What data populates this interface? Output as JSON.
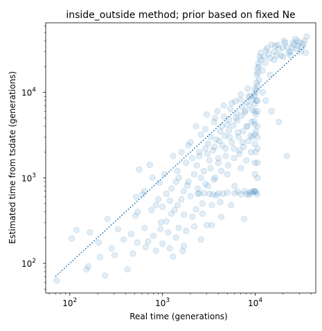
{
  "chart_data": {
    "type": "scatter",
    "title": "inside_outside method; prior based on fixed Ne",
    "xlabel": "Real time (generations)",
    "ylabel": "Estimated time from tsdate (generations)",
    "xscale": "log",
    "yscale": "log",
    "xlim": [
      55,
      45000
    ],
    "ylim": [
      45,
      65000
    ],
    "x_ticks": [
      {
        "value": 100,
        "base": "10",
        "exp": "2"
      },
      {
        "value": 1000,
        "base": "10",
        "exp": "3"
      },
      {
        "value": 10000,
        "base": "10",
        "exp": "4"
      }
    ],
    "y_ticks": [
      {
        "value": 100,
        "base": "10",
        "exp": "2"
      },
      {
        "value": 1000,
        "base": "10",
        "exp": "3"
      },
      {
        "value": 10000,
        "base": "10",
        "exp": "4"
      }
    ],
    "point_color": "#1f77b4",
    "point_alpha": 0.13,
    "reference_line": {
      "style": "dotted",
      "color": "#1f77b4",
      "from": 70,
      "to": 35000
    },
    "points": [
      [
        72,
        63
      ],
      [
        105,
        195
      ],
      [
        118,
        245
      ],
      [
        152,
        85
      ],
      [
        158,
        92
      ],
      [
        165,
        230
      ],
      [
        205,
        175
      ],
      [
        212,
        118
      ],
      [
        240,
        72
      ],
      [
        255,
        330
      ],
      [
        282,
        150
      ],
      [
        305,
        125
      ],
      [
        330,
        250
      ],
      [
        380,
        190
      ],
      [
        420,
        85
      ],
      [
        480,
        130
      ],
      [
        510,
        360
      ],
      [
        535,
        175
      ],
      [
        540,
        400
      ],
      [
        560,
        1250
      ],
      [
        610,
        640
      ],
      [
        640,
        260
      ],
      [
        660,
        155
      ],
      [
        700,
        180
      ],
      [
        730,
        1420
      ],
      [
        760,
        420
      ],
      [
        800,
        210
      ],
      [
        850,
        140
      ],
      [
        900,
        560
      ],
      [
        930,
        880
      ],
      [
        960,
        300
      ],
      [
        1000,
        170
      ],
      [
        1050,
        1100
      ],
      [
        1100,
        650
      ],
      [
        1150,
        230
      ],
      [
        1200,
        150
      ],
      [
        1250,
        380
      ],
      [
        1300,
        1800
      ],
      [
        1350,
        420
      ],
      [
        1400,
        900
      ],
      [
        1450,
        1200
      ],
      [
        1500,
        260
      ],
      [
        1600,
        2000
      ],
      [
        1650,
        140
      ],
      [
        1700,
        700
      ],
      [
        1800,
        1500
      ],
      [
        1900,
        900
      ],
      [
        2000,
        2600
      ],
      [
        2100,
        350
      ],
      [
        2200,
        1100
      ],
      [
        2300,
        4000
      ],
      [
        2400,
        650
      ],
      [
        2500,
        1800
      ],
      [
        2600,
        3200
      ],
      [
        2700,
        500
      ],
      [
        2800,
        1200
      ],
      [
        2900,
        2200
      ],
      [
        3000,
        5500
      ],
      [
        3100,
        800
      ],
      [
        3200,
        1600
      ],
      [
        3300,
        3000
      ],
      [
        3400,
        280
      ],
      [
        3500,
        2100
      ],
      [
        3600,
        4500
      ],
      [
        3700,
        1000
      ],
      [
        3800,
        2800
      ],
      [
        3900,
        6000
      ],
      [
        4000,
        1500
      ],
      [
        4200,
        3500
      ],
      [
        4400,
        2400
      ],
      [
        4600,
        7000
      ],
      [
        4800,
        1800
      ],
      [
        5000,
        4200
      ],
      [
        5300,
        3000
      ],
      [
        5600,
        7500
      ],
      [
        5900,
        2200
      ],
      [
        6200,
        5000
      ],
      [
        6500,
        3400
      ],
      [
        6900,
        8200
      ],
      [
        7300,
        2600
      ],
      [
        7700,
        5800
      ],
      [
        8100,
        4000
      ],
      [
        8500,
        9000
      ],
      [
        8900,
        3100
      ],
      [
        9300,
        6200
      ],
      [
        9700,
        4600
      ],
      [
        10000,
        700
      ],
      [
        10100,
        2000
      ],
      [
        10150,
        3500
      ],
      [
        10200,
        5500
      ],
      [
        10250,
        8000
      ],
      [
        10300,
        10500
      ],
      [
        10350,
        13000
      ],
      [
        10400,
        16000
      ],
      [
        10500,
        19000
      ],
      [
        10800,
        22000
      ],
      [
        11500,
        24000
      ],
      [
        12500,
        26000
      ],
      [
        14000,
        28000
      ],
      [
        16000,
        30000
      ],
      [
        18000,
        32000
      ],
      [
        20000,
        33000
      ],
      [
        22000,
        34000
      ],
      [
        24000,
        30000
      ],
      [
        26000,
        36000
      ],
      [
        28000,
        32000
      ],
      [
        30000,
        38000
      ],
      [
        32000,
        34000
      ],
      [
        34000,
        40000
      ],
      [
        35000,
        29000
      ],
      [
        27000,
        42000
      ],
      [
        21000,
        38000
      ],
      [
        17000,
        27000
      ],
      [
        15000,
        36000
      ],
      [
        13000,
        31000
      ],
      [
        12000,
        18000
      ],
      [
        11000,
        14000
      ],
      [
        15000,
        6000
      ],
      [
        18000,
        4500
      ],
      [
        22000,
        1800
      ],
      [
        3000,
        280
      ],
      [
        1700,
        160
      ],
      [
        1300,
        120
      ],
      [
        2600,
        190
      ],
      [
        5000,
        1100
      ],
      [
        6000,
        800
      ],
      [
        7000,
        1300
      ],
      [
        8000,
        1600
      ],
      [
        9000,
        2000
      ],
      [
        4500,
        650
      ],
      [
        3500,
        640
      ],
      [
        2800,
        660
      ],
      [
        6000,
        660
      ],
      [
        8000,
        650
      ],
      [
        9500,
        680
      ],
      [
        5500,
        480
      ],
      [
        7600,
        330
      ],
      [
        4300,
        350
      ],
      [
        6800,
        2100
      ],
      [
        2200,
        270
      ],
      [
        1600,
        560
      ],
      [
        1100,
        310
      ],
      [
        850,
        480
      ],
      [
        950,
        250
      ],
      [
        1250,
        750
      ],
      [
        1450,
        480
      ],
      [
        1850,
        820
      ],
      [
        2350,
        1400
      ],
      [
        3050,
        1900
      ],
      [
        3650,
        2300
      ],
      [
        4100,
        2700
      ],
      [
        4700,
        3100
      ],
      [
        5200,
        3600
      ],
      [
        5800,
        4100
      ],
      [
        6400,
        4700
      ],
      [
        7100,
        5300
      ],
      [
        7800,
        6100
      ],
      [
        8600,
        7000
      ],
      [
        9400,
        8200
      ],
      [
        9800,
        9600
      ],
      [
        2600,
        1000
      ],
      [
        3300,
        1300
      ],
      [
        4000,
        1700
      ],
      [
        4800,
        2200
      ],
      [
        5600,
        2600
      ],
      [
        6600,
        3000
      ],
      [
        7400,
        3500
      ],
      [
        8200,
        4000
      ],
      [
        9100,
        4500
      ],
      [
        9900,
        1100
      ],
      [
        9900,
        1500
      ],
      [
        9900,
        2500
      ],
      [
        9900,
        3200
      ],
      [
        9900,
        4200
      ],
      [
        9900,
        6000
      ],
      [
        9900,
        7300
      ],
      [
        9900,
        9000
      ],
      [
        9900,
        11000
      ],
      [
        10600,
        12000
      ],
      [
        10600,
        8000
      ],
      [
        10600,
        6000
      ],
      [
        10600,
        4000
      ],
      [
        10600,
        3000
      ],
      [
        10600,
        2200
      ],
      [
        10600,
        1500
      ],
      [
        10600,
        1000
      ],
      [
        10200,
        680
      ],
      [
        10500,
        640
      ],
      [
        9700,
        700
      ],
      [
        9000,
        690
      ],
      [
        8500,
        630
      ],
      [
        7000,
        640
      ],
      [
        5000,
        670
      ],
      [
        4000,
        660
      ],
      [
        3200,
        650
      ],
      [
        2500,
        660
      ],
      [
        3800,
        620
      ],
      [
        6500,
        690
      ],
      [
        7700,
        700
      ],
      [
        8800,
        660
      ],
      [
        1500,
        1000
      ],
      [
        1900,
        2400
      ],
      [
        2900,
        3700
      ],
      [
        3700,
        5000
      ],
      [
        4600,
        5200
      ],
      [
        5400,
        6400
      ],
      [
        6100,
        7800
      ],
      [
        7000,
        9500
      ],
      [
        8300,
        11000
      ],
      [
        1400,
        200
      ],
      [
        1800,
        240
      ],
      [
        2300,
        430
      ],
      [
        2700,
        380
      ],
      [
        3400,
        480
      ],
      [
        4200,
        520
      ],
      [
        780,
        1000
      ],
      [
        640,
        700
      ],
      [
        520,
        600
      ],
      [
        460,
        220
      ],
      [
        1000,
        460
      ],
      [
        1200,
        540
      ],
      [
        1700,
        370
      ],
      [
        2000,
        610
      ],
      [
        2400,
        750
      ],
      [
        2900,
        850
      ],
      [
        3600,
        950
      ],
      [
        4300,
        1200
      ],
      [
        5100,
        1400
      ],
      [
        5900,
        1700
      ],
      [
        6700,
        1900
      ],
      [
        7500,
        2300
      ],
      [
        8400,
        2700
      ],
      [
        9300,
        3000
      ],
      [
        2100,
        1700
      ],
      [
        2500,
        2000
      ],
      [
        3100,
        2500
      ],
      [
        4400,
        4000
      ],
      [
        5200,
        4800
      ],
      [
        6300,
        5700
      ],
      [
        7200,
        6800
      ],
      [
        8100,
        7700
      ],
      [
        8900,
        9000
      ],
      [
        19000,
        27000
      ],
      [
        23000,
        29000
      ],
      [
        25000,
        33000
      ],
      [
        29000,
        35000
      ],
      [
        31000,
        30000
      ],
      [
        33000,
        37000
      ],
      [
        36000,
        45000
      ],
      [
        13500,
        33000
      ],
      [
        16500,
        35000
      ],
      [
        11200,
        26000
      ],
      [
        12800,
        22000
      ],
      [
        14500,
        25000
      ],
      [
        16000,
        24000
      ],
      [
        20000,
        26000
      ],
      [
        24000,
        27000
      ],
      [
        10700,
        17000
      ],
      [
        10900,
        20000
      ],
      [
        11400,
        29000
      ],
      [
        17500,
        36000
      ],
      [
        20500,
        40000
      ],
      [
        25500,
        38000
      ],
      [
        28500,
        40000
      ],
      [
        13000,
        8000
      ],
      [
        12000,
        10000
      ],
      [
        14500,
        16000
      ]
    ]
  }
}
